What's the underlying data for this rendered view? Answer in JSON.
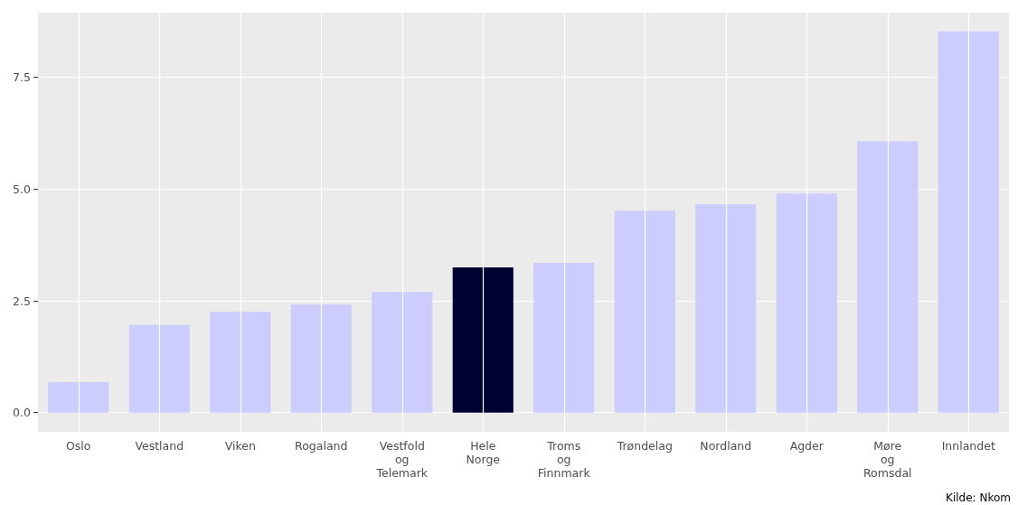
{
  "chart_data": {
    "type": "bar",
    "categories": [
      "Oslo",
      "Vestland",
      "Viken",
      "Rogaland",
      "Vestfold\nog\nTelemark",
      "Hele\nNorge",
      "Troms\nog\nFinnmark",
      "Trøndelag",
      "Nordland",
      "Agder",
      "Møre\nog\nRomsdal",
      "Innlandet"
    ],
    "values": [
      0.68,
      1.96,
      2.26,
      2.42,
      2.7,
      3.25,
      3.35,
      4.52,
      4.66,
      4.9,
      6.07,
      8.53
    ],
    "colors": [
      "#ccccff",
      "#ccccff",
      "#ccccff",
      "#ccccff",
      "#ccccff",
      "#000033",
      "#ccccff",
      "#ccccff",
      "#ccccff",
      "#ccccff",
      "#ccccff",
      "#ccccff"
    ],
    "ylim": [
      -0.43,
      8.95
    ],
    "yticks": [
      {
        "value": 0,
        "label": "0.0"
      },
      {
        "value": 2.5,
        "label": "2.5"
      },
      {
        "value": 5,
        "label": "5.0"
      },
      {
        "value": 7.5,
        "label": "7.5"
      }
    ],
    "grid": true,
    "annotations": [
      "Kilde: Nkom"
    ]
  }
}
